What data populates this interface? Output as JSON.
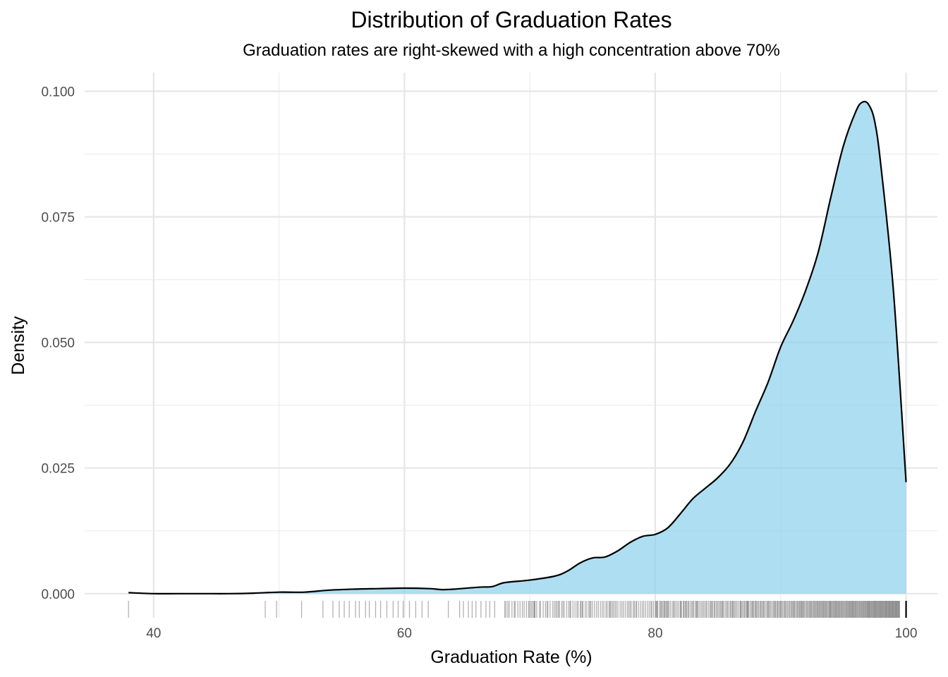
{
  "chart_data": {
    "type": "area",
    "title": "Distribution of Graduation Rates",
    "subtitle": "Graduation rates are right-skewed with a high concentration above 70%",
    "xlabel": "Graduation Rate (%)",
    "ylabel": "Density",
    "xlim": [
      34.5,
      102.5
    ],
    "ylim": [
      -0.0048,
      0.1037
    ],
    "x_ticks": [
      40,
      60,
      80,
      100
    ],
    "x_tick_labels": [
      "40",
      "60",
      "80",
      "100"
    ],
    "y_ticks": [
      0,
      0.025,
      0.05,
      0.075,
      0.1
    ],
    "y_tick_labels": [
      "0.000",
      "0.025",
      "0.050",
      "0.075",
      "0.100"
    ],
    "grid": true,
    "fill_color": "#87ceeb",
    "line_color": "#000000",
    "density_curve": {
      "x": [
        38,
        40,
        42,
        44,
        46,
        48,
        50,
        52,
        54,
        56,
        58,
        60,
        62,
        63,
        64,
        66,
        67,
        68,
        70,
        72,
        73,
        74,
        75,
        76,
        77,
        78,
        79,
        80,
        81,
        82,
        83,
        84,
        85,
        86,
        87,
        88,
        89,
        90,
        91,
        92,
        93,
        94,
        95,
        96,
        96.5,
        97,
        97.5,
        98,
        99,
        100
      ],
      "y": [
        0.0002,
        0.0,
        0.0,
        0.0,
        0.0,
        0.0001,
        0.0003,
        0.0003,
        0.0007,
        0.0009,
        0.001,
        0.0011,
        0.001,
        0.0008,
        0.0009,
        0.0013,
        0.0014,
        0.0022,
        0.0027,
        0.0035,
        0.0045,
        0.0061,
        0.0071,
        0.0073,
        0.0085,
        0.0102,
        0.0114,
        0.0118,
        0.0131,
        0.0159,
        0.0189,
        0.021,
        0.0231,
        0.0259,
        0.0302,
        0.0363,
        0.0421,
        0.0491,
        0.0543,
        0.0604,
        0.068,
        0.0789,
        0.0891,
        0.096,
        0.0978,
        0.0974,
        0.094,
        0.085,
        0.06,
        0.0222
      ]
    },
    "rug": {
      "points": [
        38,
        48.9,
        49.8,
        51.8,
        53.5,
        54.3,
        54.8,
        55.2,
        55.6,
        56.1,
        56.4,
        56.9,
        57.2,
        57.7,
        58.1,
        58.6,
        59.1,
        59.5,
        59.9,
        60.4,
        60.9,
        61.4,
        61.9,
        63.5,
        64.4,
        64.7,
        65.1,
        65.4,
        65.7,
        66.1,
        66.5,
        66.8,
        67.2
      ],
      "dense_from": 68.0,
      "dense_to": 99.5,
      "max_point": 100
    }
  }
}
